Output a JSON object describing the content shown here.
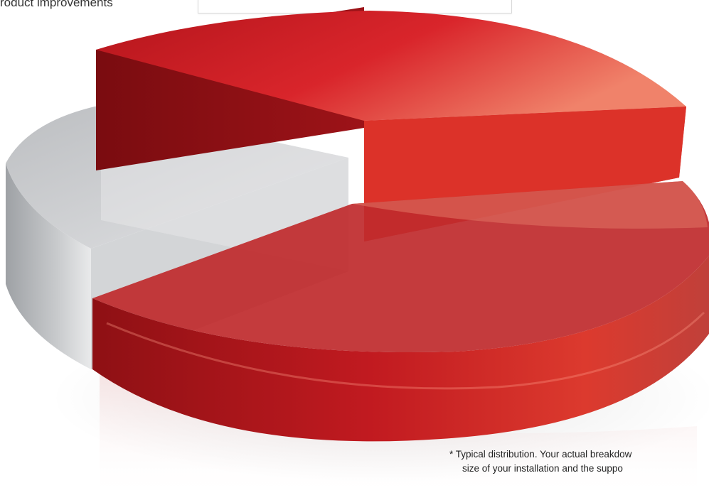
{
  "header": {
    "label": "roduct improvements"
  },
  "footnote": {
    "line1": "* Typical distribution. Your actual breakdow",
    "line2": "size of your installation and the suppo"
  },
  "colors": {
    "red": "#d11f26",
    "gray": "#c6c8cb",
    "background": "#ffffff"
  },
  "chart_data": {
    "type": "pie",
    "style": "3d-exploded",
    "title": "",
    "slices": [
      {
        "color": "red",
        "value": 35
      },
      {
        "color": "red",
        "value": 50
      },
      {
        "color": "gray",
        "value": 15
      }
    ],
    "legend": "none"
  }
}
